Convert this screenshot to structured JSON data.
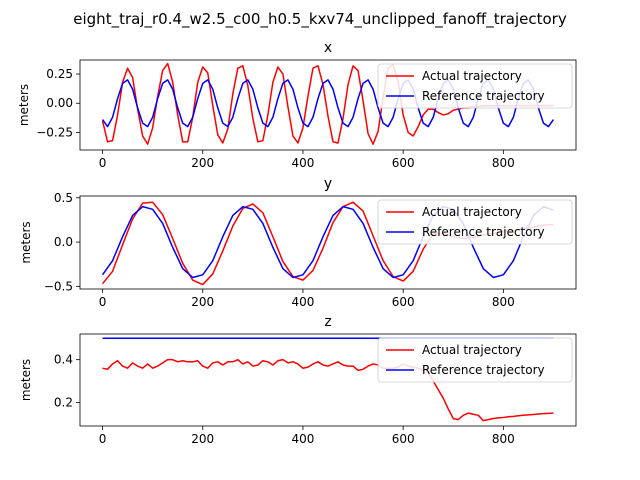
{
  "figure": {
    "title": "eight_traj_r0.4_w2.5_c00_h0.5_kxv74_unclipped_fanoff_trajectory"
  },
  "colors": {
    "actual": "#ff0000",
    "reference": "#0000ff"
  },
  "chart_data": [
    {
      "type": "line",
      "title": "x",
      "xlabel": "",
      "ylabel": "meters",
      "xlim": [
        -45,
        945
      ],
      "ylim": [
        -0.4,
        0.37
      ],
      "xticks": [
        0,
        200,
        400,
        600,
        800
      ],
      "xtick_labels": [
        "0",
        "200",
        "400",
        "600",
        "800"
      ],
      "yticks": [
        -0.25,
        0,
        0.25
      ],
      "ytick_labels": [
        "−0.25",
        "0.00",
        "0.25"
      ],
      "grid": false,
      "legend": "upper right",
      "series": [
        {
          "name": "Actual trajectory",
          "x": [
            0,
            10,
            20,
            30,
            40,
            50,
            60,
            70,
            80,
            90,
            100,
            110,
            120,
            130,
            140,
            150,
            160,
            170,
            180,
            190,
            200,
            210,
            220,
            230,
            240,
            250,
            260,
            270,
            280,
            290,
            300,
            310,
            320,
            330,
            340,
            350,
            360,
            370,
            380,
            390,
            400,
            410,
            420,
            430,
            440,
            450,
            460,
            470,
            480,
            490,
            500,
            510,
            520,
            530,
            540,
            550,
            560,
            570,
            580,
            590,
            600,
            610,
            620,
            630,
            640,
            650,
            660,
            670,
            680,
            690,
            700,
            710,
            720,
            730,
            740,
            750,
            760,
            770,
            780,
            790,
            800,
            810,
            820,
            830,
            840,
            850,
            860,
            870,
            880,
            890,
            900
          ],
          "y": [
            -0.15,
            -0.33,
            -0.32,
            -0.1,
            0.18,
            0.3,
            0.22,
            -0.05,
            -0.28,
            -0.35,
            -0.21,
            0.06,
            0.28,
            0.34,
            0.18,
            -0.1,
            -0.33,
            -0.33,
            -0.12,
            0.18,
            0.31,
            0.26,
            -0.02,
            -0.27,
            -0.34,
            -0.22,
            0.08,
            0.3,
            0.32,
            0.15,
            -0.13,
            -0.33,
            -0.32,
            -0.1,
            0.18,
            0.31,
            0.25,
            -0.03,
            -0.28,
            -0.34,
            -0.21,
            0.06,
            0.3,
            0.32,
            0.16,
            -0.11,
            -0.33,
            -0.34,
            -0.13,
            0.16,
            0.32,
            0.28,
            0.02,
            -0.26,
            -0.35,
            -0.24,
            0.05,
            0.3,
            0.33,
            0.18,
            -0.1,
            -0.25,
            -0.28,
            -0.2,
            -0.1,
            -0.05,
            -0.05,
            -0.08,
            -0.1,
            -0.09,
            -0.06,
            -0.05,
            -0.04,
            -0.04,
            -0.03,
            -0.03,
            -0.02,
            -0.02,
            -0.02,
            -0.02,
            -0.02,
            -0.02,
            -0.02,
            -0.02,
            -0.02,
            -0.02,
            -0.02,
            -0.02,
            -0.02,
            -0.02,
            -0.02
          ]
        },
        {
          "name": "Reference trajectory",
          "x": [
            0,
            10,
            20,
            30,
            40,
            50,
            60,
            70,
            80,
            90,
            100,
            110,
            120,
            130,
            140,
            150,
            160,
            170,
            180,
            190,
            200,
            210,
            220,
            230,
            240,
            250,
            260,
            270,
            280,
            290,
            300,
            310,
            320,
            330,
            340,
            350,
            360,
            370,
            380,
            390,
            400,
            410,
            420,
            430,
            440,
            450,
            460,
            470,
            480,
            490,
            500,
            510,
            520,
            530,
            540,
            550,
            560,
            570,
            580,
            590,
            600,
            610,
            620,
            630,
            640,
            650,
            660,
            670,
            680,
            690,
            700,
            710,
            720,
            730,
            740,
            750,
            760,
            770,
            780,
            790,
            800,
            810,
            820,
            830,
            840,
            850,
            860,
            870,
            880,
            890,
            900
          ],
          "y": [
            -0.14,
            -0.2,
            -0.12,
            0.04,
            0.17,
            0.2,
            0.12,
            -0.04,
            -0.17,
            -0.2,
            -0.12,
            0.04,
            0.17,
            0.2,
            0.12,
            -0.04,
            -0.17,
            -0.2,
            -0.12,
            0.04,
            0.17,
            0.2,
            0.12,
            -0.04,
            -0.17,
            -0.2,
            -0.12,
            0.04,
            0.17,
            0.2,
            0.12,
            -0.04,
            -0.17,
            -0.2,
            -0.12,
            0.04,
            0.17,
            0.2,
            0.12,
            -0.04,
            -0.17,
            -0.2,
            -0.12,
            0.04,
            0.17,
            0.2,
            0.12,
            -0.04,
            -0.17,
            -0.2,
            -0.12,
            0.04,
            0.17,
            0.2,
            0.12,
            -0.04,
            -0.17,
            -0.2,
            -0.12,
            0.04,
            0.17,
            0.2,
            0.12,
            -0.04,
            -0.17,
            -0.2,
            -0.12,
            0.04,
            0.17,
            0.2,
            0.12,
            -0.04,
            -0.17,
            -0.2,
            -0.12,
            0.04,
            0.17,
            0.2,
            0.12,
            -0.04,
            -0.17,
            -0.2,
            -0.12,
            0.04,
            0.17,
            0.2,
            0.12,
            -0.04,
            -0.17,
            -0.2,
            -0.14
          ]
        }
      ]
    },
    {
      "type": "line",
      "title": "y",
      "xlabel": "",
      "ylabel": "meters",
      "xlim": [
        -45,
        945
      ],
      "ylim": [
        -0.53,
        0.52
      ],
      "xticks": [
        0,
        200,
        400,
        600,
        800
      ],
      "xtick_labels": [
        "0",
        "200",
        "400",
        "600",
        "800"
      ],
      "yticks": [
        -0.5,
        0,
        0.5
      ],
      "ytick_labels": [
        "−0.5",
        "0.0",
        "0.5"
      ],
      "grid": false,
      "legend": "upper right",
      "series": [
        {
          "name": "Actual trajectory",
          "x": [
            0,
            20,
            40,
            60,
            80,
            100,
            120,
            140,
            160,
            180,
            200,
            220,
            240,
            260,
            280,
            300,
            320,
            340,
            360,
            380,
            400,
            420,
            440,
            460,
            480,
            500,
            520,
            540,
            560,
            580,
            600,
            620,
            640,
            660,
            680,
            700,
            720,
            740,
            760,
            780,
            800,
            820,
            840,
            860,
            880,
            900
          ],
          "y": [
            -0.47,
            -0.33,
            -0.03,
            0.26,
            0.44,
            0.45,
            0.31,
            0.04,
            -0.24,
            -0.43,
            -0.48,
            -0.36,
            -0.1,
            0.18,
            0.38,
            0.43,
            0.33,
            0.06,
            -0.22,
            -0.39,
            -0.43,
            -0.32,
            -0.07,
            0.22,
            0.4,
            0.45,
            0.35,
            0.07,
            -0.21,
            -0.39,
            -0.44,
            -0.33,
            -0.08,
            0.09,
            0.1,
            0.06,
            0.04,
            0.05,
            0.08,
            0.1,
            0.12,
            0.13,
            0.15,
            0.17,
            0.19,
            0.2
          ]
        },
        {
          "name": "Reference trajectory",
          "x": [
            0,
            20,
            40,
            60,
            80,
            100,
            120,
            140,
            160,
            180,
            200,
            220,
            240,
            260,
            280,
            300,
            320,
            340,
            360,
            380,
            400,
            420,
            440,
            460,
            480,
            500,
            520,
            540,
            560,
            580,
            600,
            620,
            640,
            660,
            680,
            700,
            720,
            740,
            760,
            780,
            800,
            820,
            840,
            860,
            880,
            900
          ],
          "y": [
            -0.37,
            -0.21,
            0.06,
            0.3,
            0.4,
            0.37,
            0.21,
            -0.06,
            -0.3,
            -0.4,
            -0.37,
            -0.21,
            0.06,
            0.3,
            0.4,
            0.37,
            0.21,
            -0.06,
            -0.3,
            -0.4,
            -0.37,
            -0.21,
            0.06,
            0.3,
            0.4,
            0.37,
            0.21,
            -0.06,
            -0.3,
            -0.4,
            -0.37,
            -0.21,
            0.06,
            0.3,
            0.4,
            0.37,
            0.21,
            -0.06,
            -0.3,
            -0.4,
            -0.37,
            -0.21,
            0.06,
            0.3,
            0.4,
            0.36
          ]
        }
      ]
    },
    {
      "type": "line",
      "title": "z",
      "xlabel": "",
      "ylabel": "meters",
      "xlim": [
        -45,
        945
      ],
      "ylim": [
        0.09,
        0.52
      ],
      "xticks": [
        0,
        200,
        400,
        600,
        800
      ],
      "xtick_labels": [
        "0",
        "200",
        "400",
        "600",
        "800"
      ],
      "yticks": [
        0.2,
        0.4
      ],
      "ytick_labels": [
        "0.2",
        "0.4"
      ],
      "grid": false,
      "legend": "upper right",
      "series": [
        {
          "name": "Actual trajectory",
          "x": [
            0,
            10,
            20,
            30,
            40,
            50,
            60,
            70,
            80,
            90,
            100,
            110,
            120,
            130,
            140,
            150,
            160,
            170,
            180,
            190,
            200,
            210,
            220,
            230,
            240,
            250,
            260,
            270,
            280,
            290,
            300,
            310,
            320,
            330,
            340,
            350,
            360,
            370,
            380,
            390,
            400,
            410,
            420,
            430,
            440,
            450,
            460,
            470,
            480,
            490,
            500,
            510,
            520,
            530,
            540,
            550,
            560,
            570,
            580,
            590,
            600,
            610,
            620,
            630,
            640,
            650,
            660,
            670,
            680,
            690,
            700,
            710,
            720,
            730,
            740,
            750,
            760,
            770,
            780,
            790,
            800,
            810,
            820,
            830,
            840,
            850,
            860,
            870,
            880,
            890,
            900
          ],
          "y": [
            0.36,
            0.355,
            0.38,
            0.395,
            0.37,
            0.36,
            0.385,
            0.37,
            0.36,
            0.38,
            0.36,
            0.37,
            0.385,
            0.4,
            0.4,
            0.39,
            0.395,
            0.39,
            0.39,
            0.395,
            0.37,
            0.36,
            0.385,
            0.39,
            0.375,
            0.39,
            0.39,
            0.4,
            0.38,
            0.39,
            0.37,
            0.375,
            0.395,
            0.39,
            0.375,
            0.395,
            0.4,
            0.385,
            0.39,
            0.38,
            0.36,
            0.365,
            0.38,
            0.39,
            0.375,
            0.37,
            0.38,
            0.39,
            0.375,
            0.37,
            0.37,
            0.35,
            0.355,
            0.37,
            0.38,
            0.375,
            0.36,
            0.36,
            0.36,
            0.365,
            0.38,
            0.37,
            0.365,
            0.36,
            0.35,
            0.34,
            0.3,
            0.26,
            0.22,
            0.17,
            0.125,
            0.12,
            0.14,
            0.15,
            0.145,
            0.14,
            0.115,
            0.12,
            0.125,
            0.128,
            0.13,
            0.133,
            0.135,
            0.138,
            0.14,
            0.142,
            0.144,
            0.146,
            0.148,
            0.149,
            0.15
          ]
        },
        {
          "name": "Reference trajectory",
          "x": [
            0,
            900
          ],
          "y": [
            0.5,
            0.5
          ]
        }
      ]
    }
  ]
}
